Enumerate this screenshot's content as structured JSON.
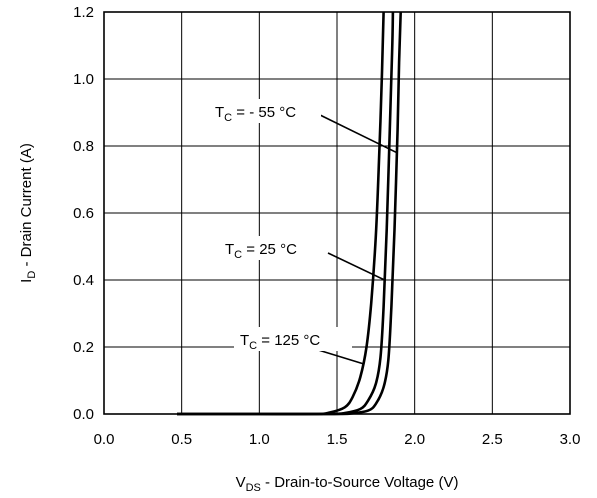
{
  "chart_data": {
    "type": "line",
    "xlabel": {
      "main": "V",
      "sub": "DS",
      "rest": " - Drain-to-Source Voltage (V)"
    },
    "ylabel": {
      "main": "I",
      "sub": "D",
      "rest": " - Drain Current (A)"
    },
    "xlim": [
      0.0,
      3.0
    ],
    "ylim": [
      0.0,
      1.2
    ],
    "x_ticks": [
      "0.0",
      "0.5",
      "1.0",
      "1.5",
      "2.0",
      "2.5",
      "3.0"
    ],
    "y_ticks": [
      "0.0",
      "0.2",
      "0.4",
      "0.6",
      "0.8",
      "1.0",
      "1.2"
    ],
    "grid": true,
    "series": [
      {
        "annotation": {
          "main": "T",
          "sub": "C",
          "rest": " = - 55 °C"
        },
        "x": [
          0.47,
          1.0,
          1.5,
          1.6,
          1.7,
          1.75,
          1.8,
          1.83,
          1.85,
          1.87,
          1.89,
          1.9,
          1.91
        ],
        "y": [
          0.0,
          0.0,
          0.0,
          0.002,
          0.01,
          0.03,
          0.08,
          0.16,
          0.32,
          0.55,
          0.85,
          1.05,
          1.2
        ]
      },
      {
        "annotation": {
          "main": "T",
          "sub": "C",
          "rest": " = 25 °C"
        },
        "x": [
          0.47,
          1.0,
          1.45,
          1.55,
          1.65,
          1.7,
          1.75,
          1.78,
          1.8,
          1.82,
          1.84,
          1.855,
          1.86
        ],
        "y": [
          0.0,
          0.0,
          0.0,
          0.003,
          0.015,
          0.04,
          0.09,
          0.17,
          0.32,
          0.55,
          0.85,
          1.08,
          1.2
        ]
      },
      {
        "annotation": {
          "main": "T",
          "sub": "C",
          "rest": " = 125 °C"
        },
        "x": [
          0.47,
          1.0,
          1.35,
          1.45,
          1.55,
          1.6,
          1.65,
          1.69,
          1.72,
          1.75,
          1.77,
          1.79,
          1.8
        ],
        "y": [
          0.0,
          0.0,
          0.0,
          0.004,
          0.02,
          0.05,
          0.11,
          0.2,
          0.33,
          0.53,
          0.75,
          1.02,
          1.2
        ]
      }
    ]
  }
}
